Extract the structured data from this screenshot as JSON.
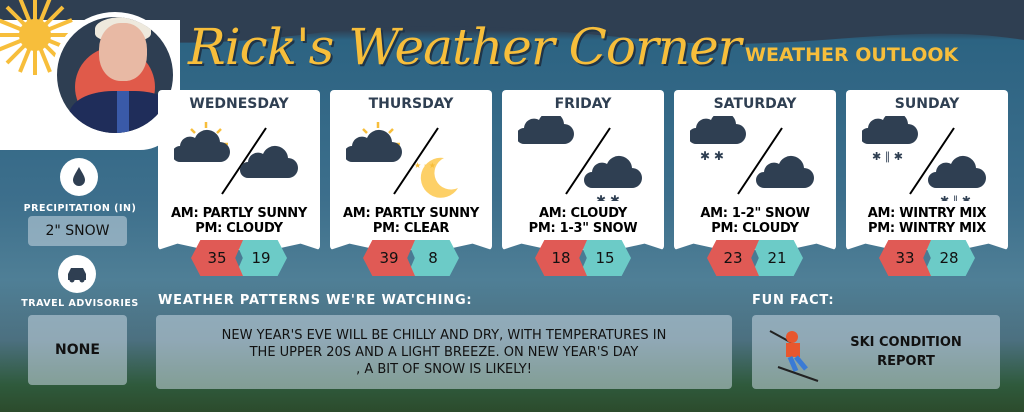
{
  "header": {
    "title": "Rick's Weather Corner",
    "subtitle": "WEATHER OUTLOOK"
  },
  "days": [
    {
      "day": "WEDNESDAY",
      "am": "AM: PARTLY SUNNY",
      "pm": "PM: CLOUDY",
      "high": "35",
      "low": "19",
      "am_icon": "partly-sunny-icon",
      "pm_icon": "cloudy-icon"
    },
    {
      "day": "THURSDAY",
      "am": "AM: PARTLY SUNNY",
      "pm": "PM: CLEAR",
      "high": "39",
      "low": "8",
      "am_icon": "partly-sunny-icon",
      "pm_icon": "clear-night-icon"
    },
    {
      "day": "FRIDAY",
      "am": "AM: CLOUDY",
      "pm": "PM: 1-3\" SNOW",
      "high": "18",
      "low": "15",
      "am_icon": "cloudy-icon",
      "pm_icon": "snow-icon"
    },
    {
      "day": "SATURDAY",
      "am": "AM: 1-2\" SNOW",
      "pm": "PM: CLOUDY",
      "high": "23",
      "low": "21",
      "am_icon": "snow-icon",
      "pm_icon": "cloudy-icon"
    },
    {
      "day": "SUNDAY",
      "am": "AM: WINTRY MIX",
      "pm": "PM: WINTRY MIX",
      "high": "33",
      "low": "28",
      "am_icon": "wintry-mix-icon",
      "pm_icon": "wintry-mix-icon"
    }
  ],
  "precipitation": {
    "label": "PRECIPITATION (IN)",
    "value": "2\" SNOW"
  },
  "travel": {
    "label": "TRAVEL ADVISORIES",
    "value": "NONE"
  },
  "patterns": {
    "label": "WEATHER PATTERNS WE'RE WATCHING:",
    "line1": "NEW YEAR'S EVE WILL BE CHILLY AND DRY, WITH TEMPERATURES IN",
    "line2": "THE UPPER 20S AND A LIGHT BREEZE. ON NEW YEAR'S DAY",
    "line3": ", A BIT OF SNOW IS LIKELY!"
  },
  "fun_fact": {
    "label": "FUN FACT:",
    "line1": "SKI CONDITION",
    "line2": "REPORT"
  },
  "colors": {
    "accent": "#f7be3b",
    "navy": "#2f3f52",
    "high": "#e05a55",
    "low": "#6ccbc7"
  }
}
